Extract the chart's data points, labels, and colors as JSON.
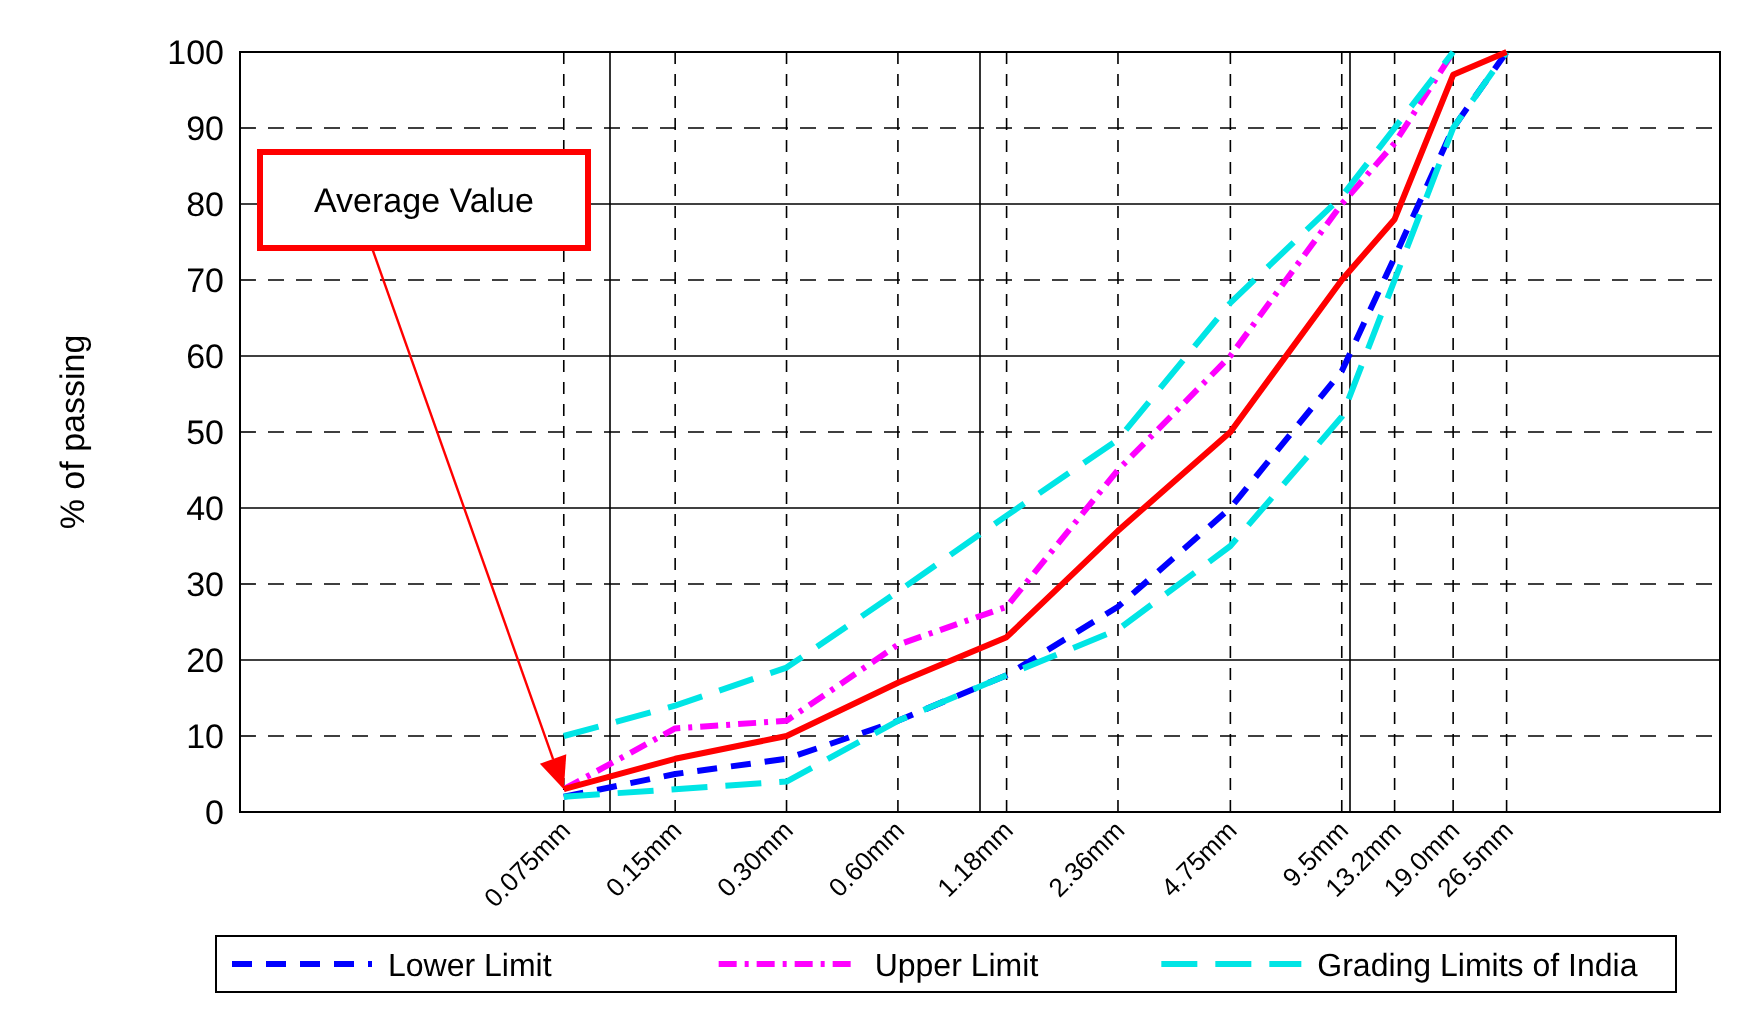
{
  "chart_data": {
    "type": "line",
    "ylabel": "% of passing",
    "log": "x",
    "grid": true,
    "legend": "bottom",
    "marker": "none",
    "x": [
      0.075,
      0.15,
      0.3,
      0.6,
      1.18,
      2.36,
      4.75,
      9.5,
      13.2,
      19,
      26.5
    ],
    "xlim": [
      0.01,
      100
    ],
    "xticks": [
      {
        "value": 0.01,
        "label": null
      },
      {
        "value": 0.075,
        "label": "0.075mm"
      },
      {
        "value": 0.1,
        "label": null
      },
      {
        "value": 0.15,
        "label": "0.15mm"
      },
      {
        "value": 0.3,
        "label": "0.30mm"
      },
      {
        "value": 0.6,
        "label": "0.60mm"
      },
      {
        "value": 1,
        "label": null
      },
      {
        "value": 1.18,
        "label": "1.18mm"
      },
      {
        "value": 2.36,
        "label": "2.36mm"
      },
      {
        "value": 4.75,
        "label": "4.75mm"
      },
      {
        "value": 9.5,
        "label": "9.5mm"
      },
      {
        "value": 10,
        "label": null
      },
      {
        "value": 13.2,
        "label": "13.2mm"
      },
      {
        "value": 19,
        "label": "19.0mm"
      },
      {
        "value": 26.5,
        "label": "26.5mm"
      },
      {
        "value": 100,
        "label": null
      }
    ],
    "ylim": [
      0,
      100
    ],
    "yticks": [
      0,
      10,
      20,
      30,
      40,
      50,
      60,
      70,
      80,
      90,
      100
    ],
    "series": [
      {
        "name": "Lower Limit",
        "color": "#0000ff",
        "line_style": "dashed",
        "values": [
          2,
          5,
          7,
          12,
          18,
          27,
          40,
          58,
          73,
          90,
          100
        ]
      },
      {
        "name": "Upper Limit",
        "color": "#ff00ff",
        "line_style": "dashdot",
        "values": [
          3,
          11,
          12,
          22,
          27,
          45,
          60,
          80,
          88,
          100,
          null
        ]
      },
      {
        "name": "Grading Limits of India",
        "color": "#00e5e5",
        "line_style": "longdash",
        "values": [
          10,
          14,
          19,
          29,
          39,
          49,
          67,
          81,
          90,
          100,
          null
        ]
      },
      {
        "color": "#00e5e5",
        "line_style": "longdash",
        "values": [
          2,
          3,
          4,
          12,
          18,
          24,
          35,
          52,
          70,
          90,
          100
        ]
      },
      {
        "color": "#ff0000",
        "line_style": "solid",
        "values": [
          3,
          7,
          10,
          17,
          23,
          37,
          50,
          70,
          78,
          97,
          100
        ]
      }
    ],
    "annotations": [
      "Average Value"
    ]
  }
}
